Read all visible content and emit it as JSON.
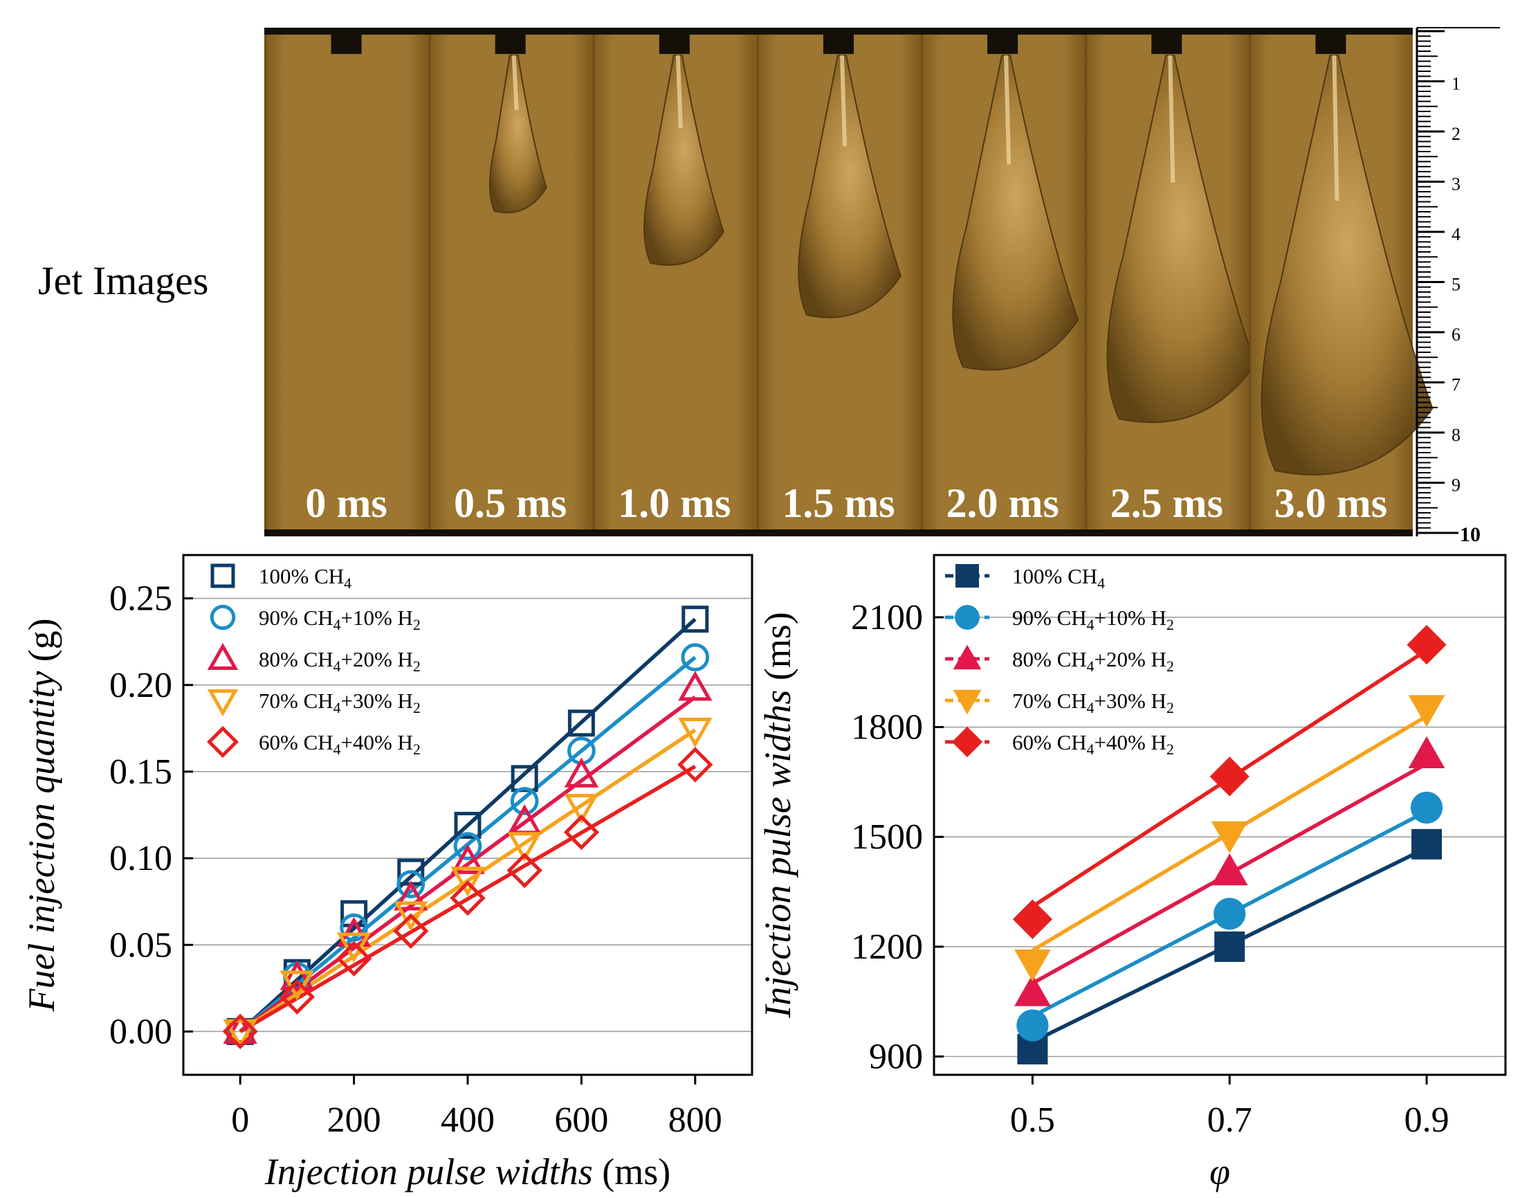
{
  "figure": {
    "jet_label": "Jet Images",
    "ruler_end_label": "10",
    "frame_times": [
      "0 ms",
      "0.5 ms",
      "1.0 ms",
      "1.5 ms",
      "2.0 ms",
      "2.5 ms",
      "3.0 ms"
    ],
    "ruler_labels": [
      "1",
      "2",
      "3",
      "4",
      "5",
      "6",
      "7",
      "8",
      "9"
    ]
  },
  "chart_data": [
    {
      "type": "scatter",
      "title": "",
      "xlabel": "Injection pulse widths",
      "xlabel_unit": "(ms)",
      "ylabel": "Fuel injection quantity",
      "ylabel_unit": "(g)",
      "xlim": [
        -100,
        900
      ],
      "ylim": [
        -0.025,
        0.275
      ],
      "xticks": [
        0,
        200,
        400,
        600,
        800
      ],
      "xtick_labels": [
        "0",
        "200",
        "400",
        "600",
        "800"
      ],
      "yticks": [
        0.0,
        0.05,
        0.1,
        0.15,
        0.2,
        0.25
      ],
      "ytick_labels": [
        "0.00",
        "0.05",
        "0.10",
        "0.15",
        "0.20",
        "0.25"
      ],
      "grid": "horizontal",
      "legend_position": "top-left",
      "fit_lines": true,
      "x": [
        0,
        100,
        200,
        300,
        400,
        500,
        600,
        800
      ],
      "series": [
        {
          "name": "100% CH4",
          "label_parts": [
            "100% CH",
            "4",
            "",
            "",
            ""
          ],
          "color": "#0d3b66",
          "marker": "square",
          "filled": false,
          "values": [
            0.0,
            0.034,
            0.068,
            0.092,
            0.119,
            0.146,
            0.178,
            0.238
          ],
          "fit": [
            0.0,
            0.238
          ]
        },
        {
          "name": "90% CH4+10% H2",
          "label_parts": [
            "90% CH",
            "4",
            "+10% H",
            "2",
            ""
          ],
          "color": "#1b8ec7",
          "marker": "circle",
          "filled": false,
          "values": [
            0.0,
            0.032,
            0.06,
            0.085,
            0.107,
            0.133,
            0.162,
            0.216
          ],
          "fit": [
            0.0,
            0.216
          ]
        },
        {
          "name": "80% CH4+20% H2",
          "label_parts": [
            "80% CH",
            "4",
            "+20% H",
            "2",
            ""
          ],
          "color": "#e0194a",
          "marker": "triangle-up",
          "filled": false,
          "values": [
            0.0,
            0.031,
            0.056,
            0.077,
            0.098,
            0.121,
            0.148,
            0.198
          ],
          "fit": [
            0.0,
            0.193
          ]
        },
        {
          "name": "70% CH4+30% H2",
          "label_parts": [
            "70% CH",
            "4",
            "+30% H",
            "2",
            ""
          ],
          "color": "#f7a21b",
          "marker": "triangle-down",
          "filled": false,
          "values": [
            0.0,
            0.028,
            0.05,
            0.068,
            0.088,
            0.108,
            0.13,
            0.174
          ],
          "fit": [
            0.0,
            0.174
          ]
        },
        {
          "name": "60% CH4+40% H2",
          "label_parts": [
            "60% CH",
            "4",
            "+40% H",
            "2",
            ""
          ],
          "color": "#e81f1f",
          "marker": "diamond",
          "filled": false,
          "values": [
            0.0,
            0.02,
            0.042,
            0.058,
            0.077,
            0.093,
            0.115,
            0.154
          ],
          "fit": [
            0.0,
            0.153
          ]
        }
      ]
    },
    {
      "type": "line",
      "title": "",
      "xlabel": "φ",
      "ylabel": "Injection pulse widths",
      "ylabel_unit": "(ms)",
      "xlim": [
        0.4,
        0.98
      ],
      "ylim": [
        850,
        2270
      ],
      "xticks": [
        0.5,
        0.7,
        0.9
      ],
      "xtick_labels": [
        "0.5",
        "0.7",
        "0.9"
      ],
      "yticks": [
        900,
        1200,
        1500,
        1800,
        2100
      ],
      "ytick_labels": [
        "900",
        "1200",
        "1500",
        "1800",
        "2100"
      ],
      "grid": "horizontal",
      "legend_position": "top-left",
      "x": [
        0.5,
        0.7,
        0.9
      ],
      "series": [
        {
          "name": "100% CH4",
          "label_parts": [
            "100% CH",
            "4",
            "",
            "",
            ""
          ],
          "color": "#0d3b66",
          "marker": "square",
          "filled": true,
          "values": [
            920,
            1200,
            1480
          ],
          "fit": [
            940,
            1470
          ]
        },
        {
          "name": "90% CH4+10% H2",
          "label_parts": [
            "90% CH",
            "4",
            "+10% H",
            "2",
            ""
          ],
          "color": "#1b8ec7",
          "marker": "circle",
          "filled": true,
          "values": [
            985,
            1290,
            1580
          ],
          "fit": [
            1010,
            1570
          ]
        },
        {
          "name": "80% CH4+20% H2",
          "label_parts": [
            "80% CH",
            "4",
            "+20% H",
            "2",
            ""
          ],
          "color": "#e0194a",
          "marker": "triangle-up",
          "filled": true,
          "values": [
            1075,
            1405,
            1725
          ],
          "fit": [
            1100,
            1700
          ]
        },
        {
          "name": "70% CH4+30% H2",
          "label_parts": [
            "70% CH",
            "4",
            "+30% H",
            "2",
            ""
          ],
          "color": "#f7a21b",
          "marker": "triangle-down",
          "filled": true,
          "values": [
            1155,
            1505,
            1850
          ],
          "fit": [
            1190,
            1830
          ]
        },
        {
          "name": "60% CH4+40% H2",
          "label_parts": [
            "60% CH",
            "4",
            "+40% H",
            "2",
            ""
          ],
          "color": "#e81f1f",
          "marker": "diamond",
          "filled": true,
          "values": [
            1275,
            1665,
            2025
          ],
          "fit": [
            1310,
            2010
          ]
        }
      ]
    }
  ]
}
